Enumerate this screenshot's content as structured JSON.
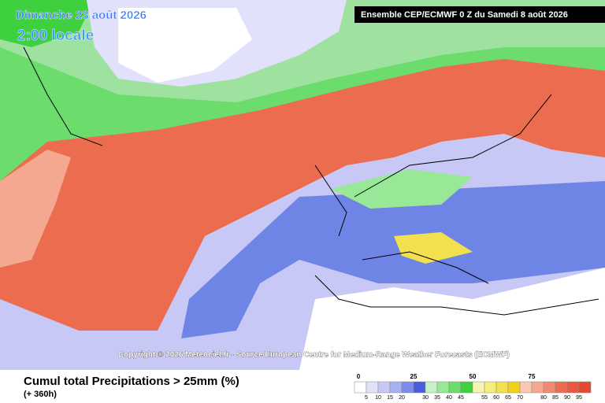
{
  "header": {
    "date": "Dimanche 23 août 2026",
    "time": "2:00 locale",
    "run": "Ensemble CEP/ECMWF 0 Z du Samedi 8 août 2026"
  },
  "copyright": "Copyright © 2026 Meteociel.fr - Source European Centre for Medium-Range Weather Forecasts (ECMWF)",
  "footer": {
    "title": "Cumul total Precipitations > 25mm (%)",
    "lead": "(+ 360h)"
  },
  "legend": {
    "colors": [
      "#ffffff",
      "#e1e1fb",
      "#c8c8f6",
      "#a8b0f2",
      "#7d8cea",
      "#4a5de0",
      "#c4f2c4",
      "#98e898",
      "#6cdc6c",
      "#3fd03f",
      "#f6f6b0",
      "#f4ee7c",
      "#f2e04e",
      "#f0d21e",
      "#f8c8b0",
      "#f4a890",
      "#f08a70",
      "#ec6c50",
      "#e85a40",
      "#e44a30"
    ],
    "top_labels": [
      0,
      25,
      50,
      75
    ],
    "bottom_labels": [
      5,
      10,
      15,
      20,
      30,
      35,
      40,
      45,
      55,
      60,
      65,
      70,
      80,
      85,
      90,
      95
    ]
  }
}
